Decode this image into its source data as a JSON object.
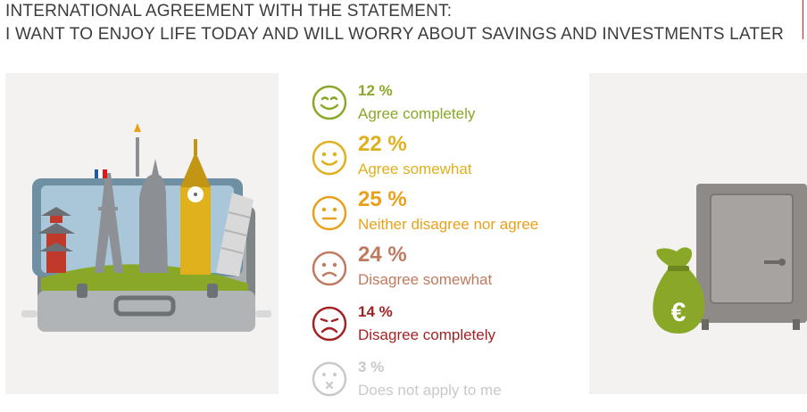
{
  "header": {
    "line1": "INTERNATIONAL AGREEMENT WITH THE STATEMENT:",
    "line2": "I WANT TO ENJOY LIFE TODAY AND WILL WORRY ABOUT SAVINGS AND INVESTMENTS LATER"
  },
  "accent_color": "#e3161b",
  "results": [
    {
      "percent": "12 %",
      "label": "Agree completely",
      "color": "#8aa827",
      "icon": "big-smile-face-icon"
    },
    {
      "percent": "22 %",
      "label": "Agree somewhat",
      "color": "#e0b01d",
      "icon": "smile-face-icon"
    },
    {
      "percent": "25 %",
      "label": "Neither disagree nor agree",
      "color": "#e9a11a",
      "icon": "neutral-face-icon"
    },
    {
      "percent": "24 %",
      "label": "Disagree somewhat",
      "color": "#c07a60",
      "icon": "frown-face-icon"
    },
    {
      "percent": "14 %",
      "label": "Disagree completely",
      "color": "#a32224",
      "icon": "sad-face-icon"
    },
    {
      "percent": "3 %",
      "label": "Does not apply to me",
      "color": "#c9c9c9",
      "icon": "dizzy-face-icon"
    }
  ],
  "illustrations": {
    "left": "suitcase-landmarks-illustration",
    "right": "safe-money-bag-illustration",
    "bag_symbol": "€"
  }
}
